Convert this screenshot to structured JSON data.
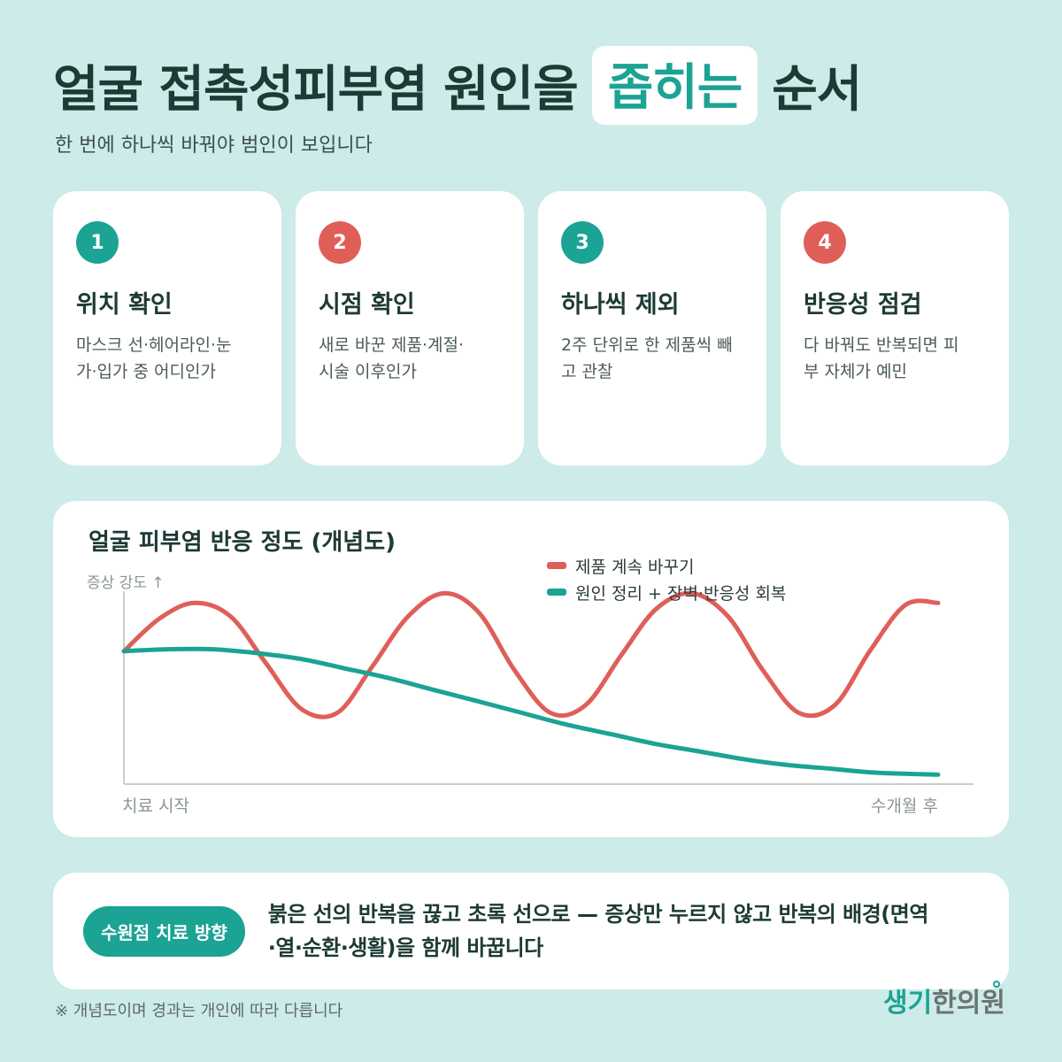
{
  "title": {
    "before": "얼굴 접촉성피부염 원인을",
    "highlight": "좁히는",
    "after": "순서"
  },
  "subtitle": "한 번에 하나씩 바꿔야 범인이 보입니다",
  "steps": [
    {
      "number": "1",
      "title": "위치 확인",
      "desc_line1": "마스크 선·헤어라인·눈",
      "desc_line2": "가·입가 중 어디인가",
      "color": "#1ba394"
    },
    {
      "number": "2",
      "title": "시점 확인",
      "desc_line1": "새로 바꾼 제품·계절·",
      "desc_line2": "시술 이후인가",
      "color": "#df5f58"
    },
    {
      "number": "3",
      "title": "하나씩 제외",
      "desc_line1": "2주 단위로 한 제품씩 빼",
      "desc_line2": "고 관찰",
      "color": "#1ba394"
    },
    {
      "number": "4",
      "title": "반응성 점검",
      "desc_line1": "다 바꿔도 반복되면 피",
      "desc_line2": "부 자체가 예민",
      "color": "#df5f58"
    }
  ],
  "chart_data": {
    "type": "line",
    "title": "얼굴 피부염 반응 정도 (개념도)",
    "ylabel": "증상 강도 ↑",
    "x_start_label": "치료 시작",
    "x_end_label": "수개월 후",
    "xlim": [
      0,
      1
    ],
    "ylim": [
      0,
      1
    ],
    "grid": false,
    "legend_position": "top-right",
    "series": [
      {
        "name": "제품 계속 바꾸기",
        "color": "#df5f58",
        "x": [
          0,
          0.044,
          0.087,
          0.131,
          0.174,
          0.218,
          0.262,
          0.305,
          0.349,
          0.393,
          0.436,
          0.48,
          0.524,
          0.567,
          0.611,
          0.654,
          0.698,
          0.742,
          0.785,
          0.829,
          0.873,
          0.916,
          0.96,
          1.0
        ],
        "y": [
          0.68,
          0.85,
          0.93,
          0.86,
          0.62,
          0.38,
          0.36,
          0.6,
          0.86,
          0.98,
          0.88,
          0.58,
          0.36,
          0.4,
          0.66,
          0.9,
          0.98,
          0.86,
          0.58,
          0.36,
          0.4,
          0.68,
          0.92,
          0.93
        ]
      },
      {
        "name": "원인 정리 + 장벽·반응성 회복",
        "color": "#1ba394",
        "x": [
          0,
          0.054,
          0.109,
          0.163,
          0.217,
          0.272,
          0.326,
          0.38,
          0.435,
          0.489,
          0.543,
          0.598,
          0.652,
          0.707,
          0.761,
          0.815,
          0.87,
          0.924,
          1.0
        ],
        "y": [
          0.68,
          0.69,
          0.69,
          0.67,
          0.64,
          0.59,
          0.54,
          0.48,
          0.42,
          0.36,
          0.3,
          0.25,
          0.2,
          0.16,
          0.12,
          0.09,
          0.07,
          0.05,
          0.04
        ]
      }
    ]
  },
  "note": {
    "badge": "수원점 치료 방향",
    "line1": "붉은 선의 반복을 끊고 초록 선으로 — 증상만 누르지 않고 반복의 배경(면역",
    "line2": "·열·순환·생활)을 함께 바꿉니다"
  },
  "footnote": "※ 개념도이며 경과는 개인에 따라 다릅니다",
  "logo": {
    "part1": "생기",
    "part2": "한의원"
  },
  "colors": {
    "accent": "#1ba394",
    "alert": "#df5f58",
    "background": "#cdebe8"
  }
}
